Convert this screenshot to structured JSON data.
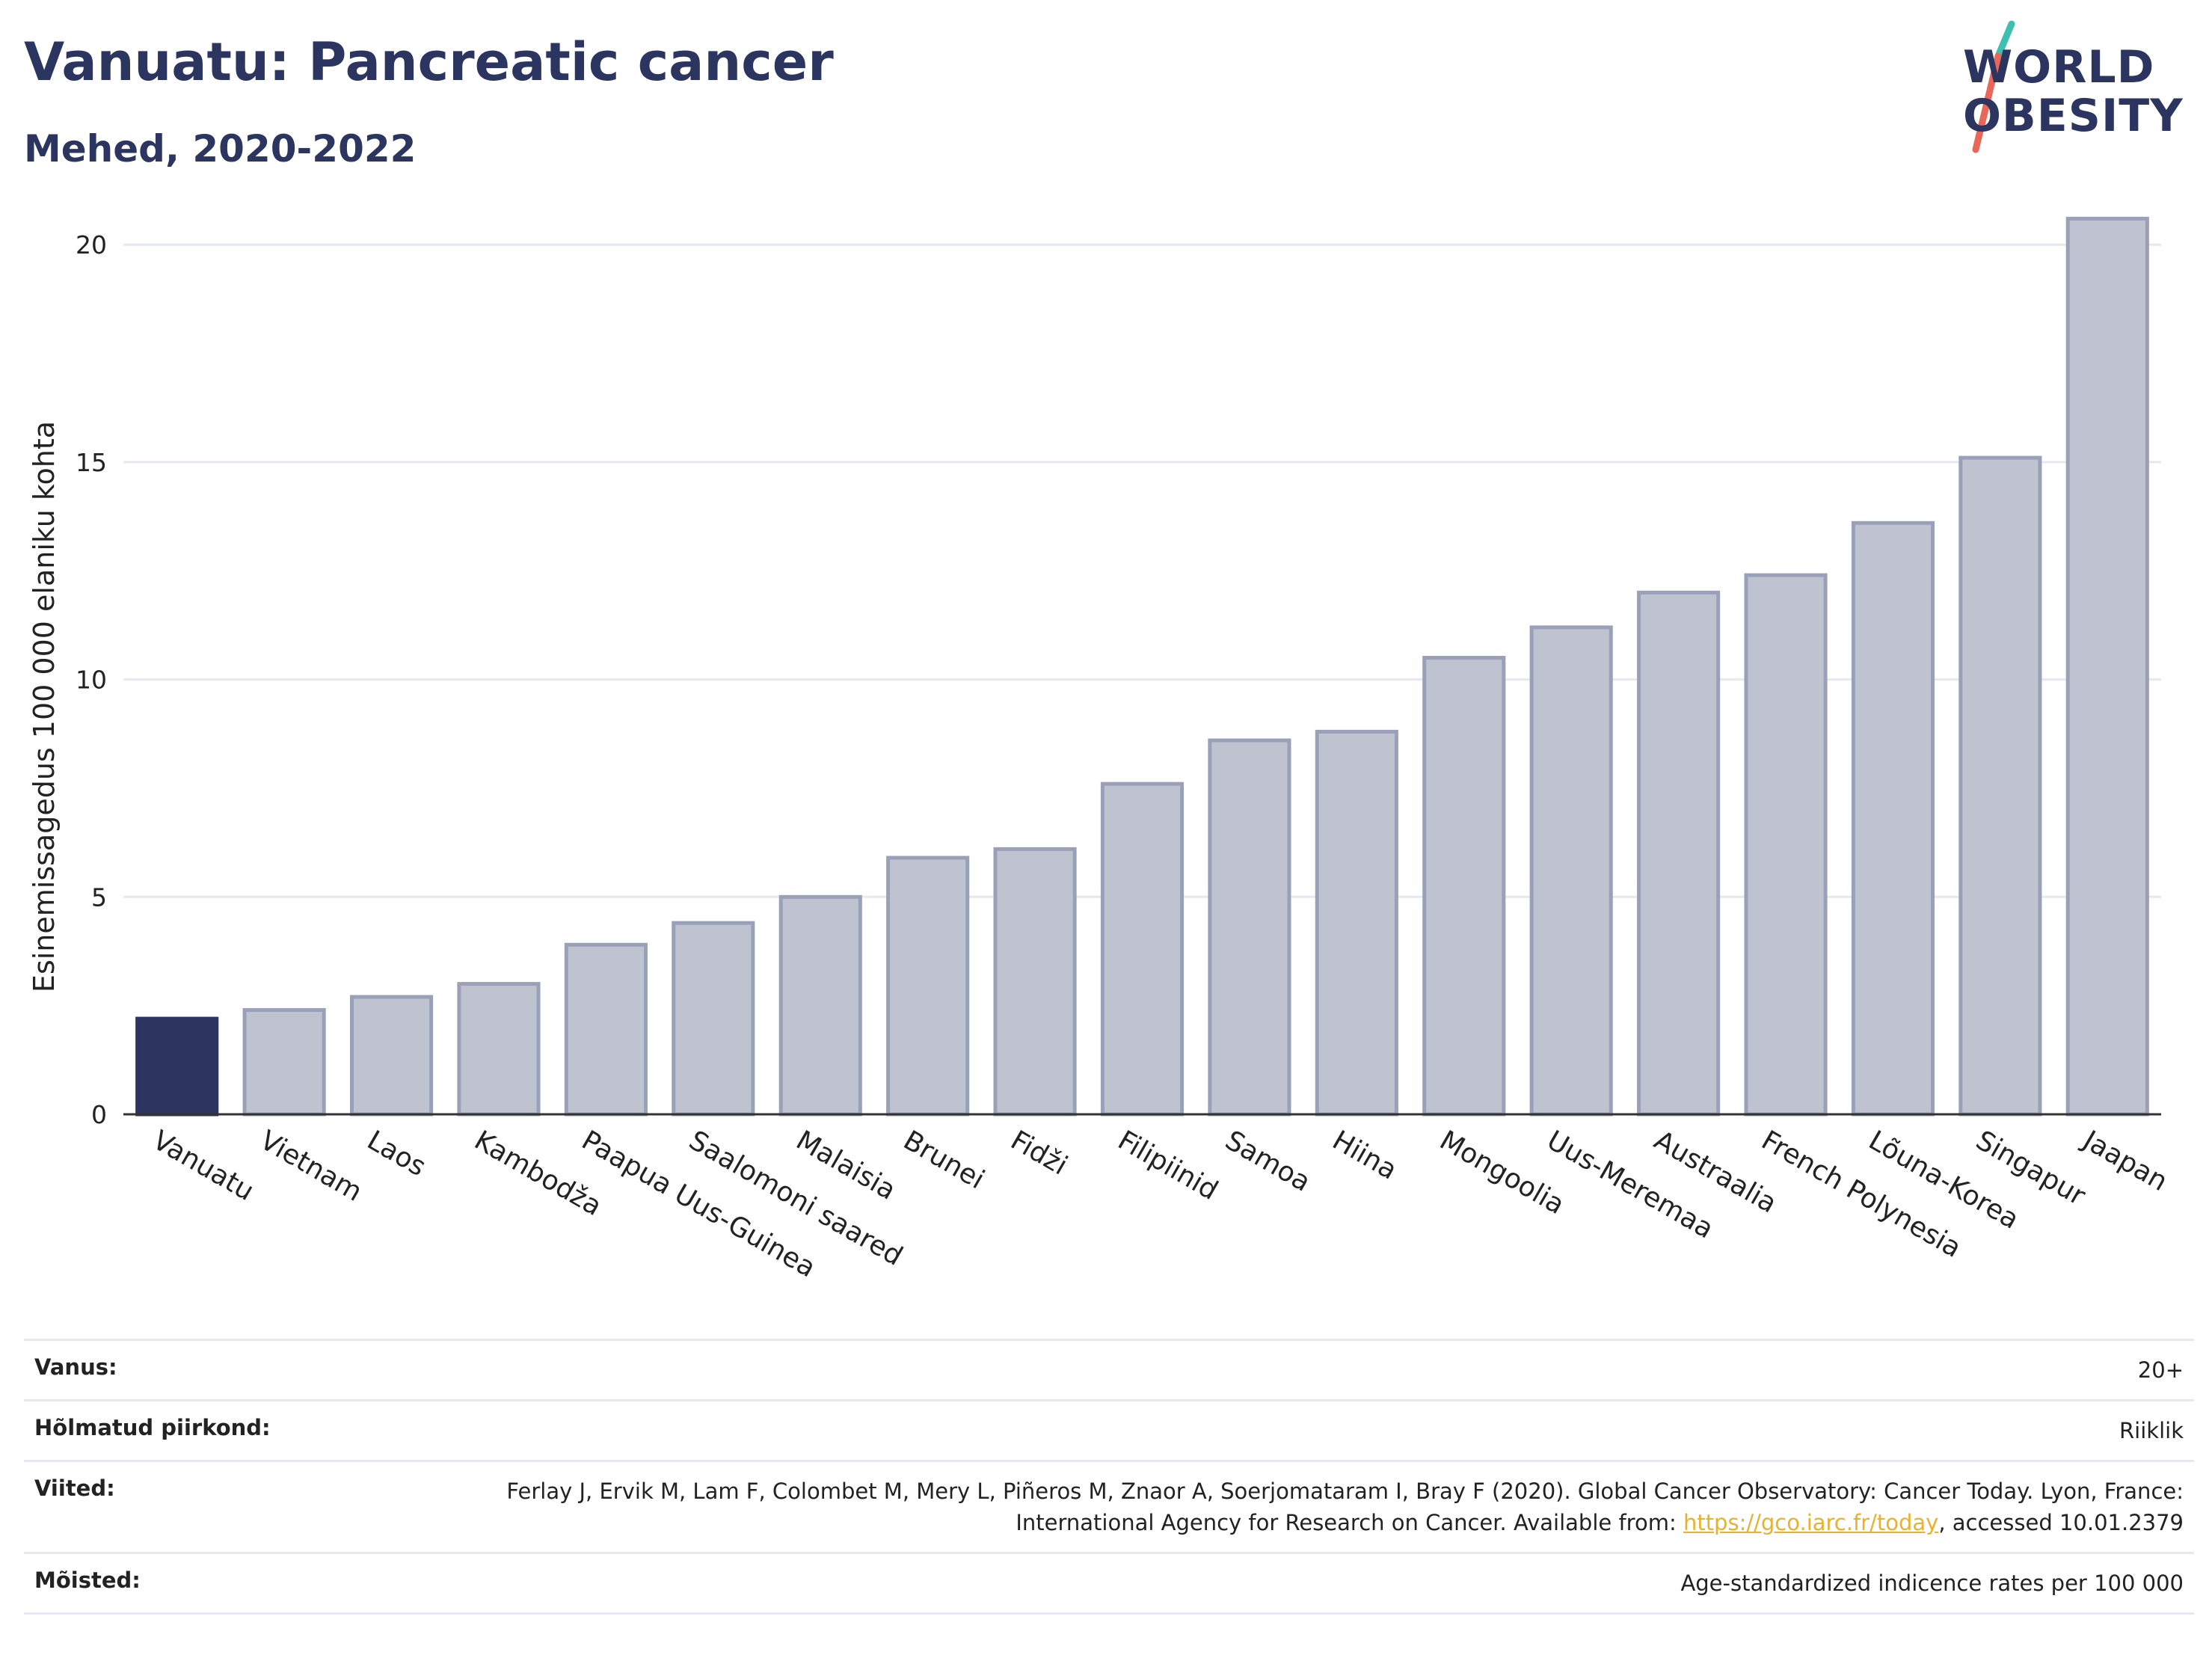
{
  "header": {
    "title": "Vanuatu: Pancreatic cancer",
    "subtitle": "Mehed, 2020-2022"
  },
  "logo": {
    "line1": "WORLD",
    "line2": "OBESITY",
    "colors": {
      "text": "#2b3560",
      "slash_top": "#3fbfb0",
      "slash_bottom": "#e8665a"
    }
  },
  "colors": {
    "highlight_bar": "#2b3560",
    "bar_fill": "#bfc3d0",
    "bar_stroke": "#9aa0b8",
    "grid": "#e6e8f0",
    "axis": "#333333"
  },
  "chart_data": {
    "type": "bar",
    "title": "",
    "xlabel": "",
    "ylabel": "Esinemissagedus 100 000 elaniku kohta",
    "ylim": [
      0,
      21.5
    ],
    "yticks": [
      0,
      5,
      10,
      15,
      20
    ],
    "grid": true,
    "highlight": "Vanuatu",
    "categories": [
      "Vanuatu",
      "Vietnam",
      "Laos",
      "Kambodža",
      "Paapua Uus-Guinea",
      "Saalomoni saared",
      "Malaisia",
      "Brunei",
      "Fidži",
      "Filipiinid",
      "Samoa",
      "Hiina",
      "Mongoolia",
      "Uus-Meremaa",
      "Austraalia",
      "French Polynesia",
      "Lõuna-Korea",
      "Singapur",
      "Jaapan"
    ],
    "values": [
      2.2,
      2.4,
      2.7,
      3.0,
      3.9,
      4.4,
      5.0,
      5.9,
      6.1,
      7.6,
      8.6,
      8.8,
      10.5,
      11.2,
      12.0,
      12.4,
      13.6,
      15.1,
      20.6
    ]
  },
  "info": {
    "rows": [
      {
        "key": "Vanus:",
        "value": "20+"
      },
      {
        "key": "Hõlmatud piirkond:",
        "value": "Riiklik"
      },
      {
        "key": "Viited:",
        "value_before": "Ferlay J, Ervik M, Lam F, Colombet M, Mery L, Piñeros M, Znaor A, Soerjomataram I, Bray F (2020). Global Cancer Observatory: Cancer Today. Lyon, France: International Agency for Research on Cancer. Available from: ",
        "link": "https://gco.iarc.fr/today",
        "value_after": ", accessed 10.01.2379"
      },
      {
        "key": "Mõisted:",
        "value": "Age-standardized indicence rates per 100 000"
      }
    ]
  }
}
